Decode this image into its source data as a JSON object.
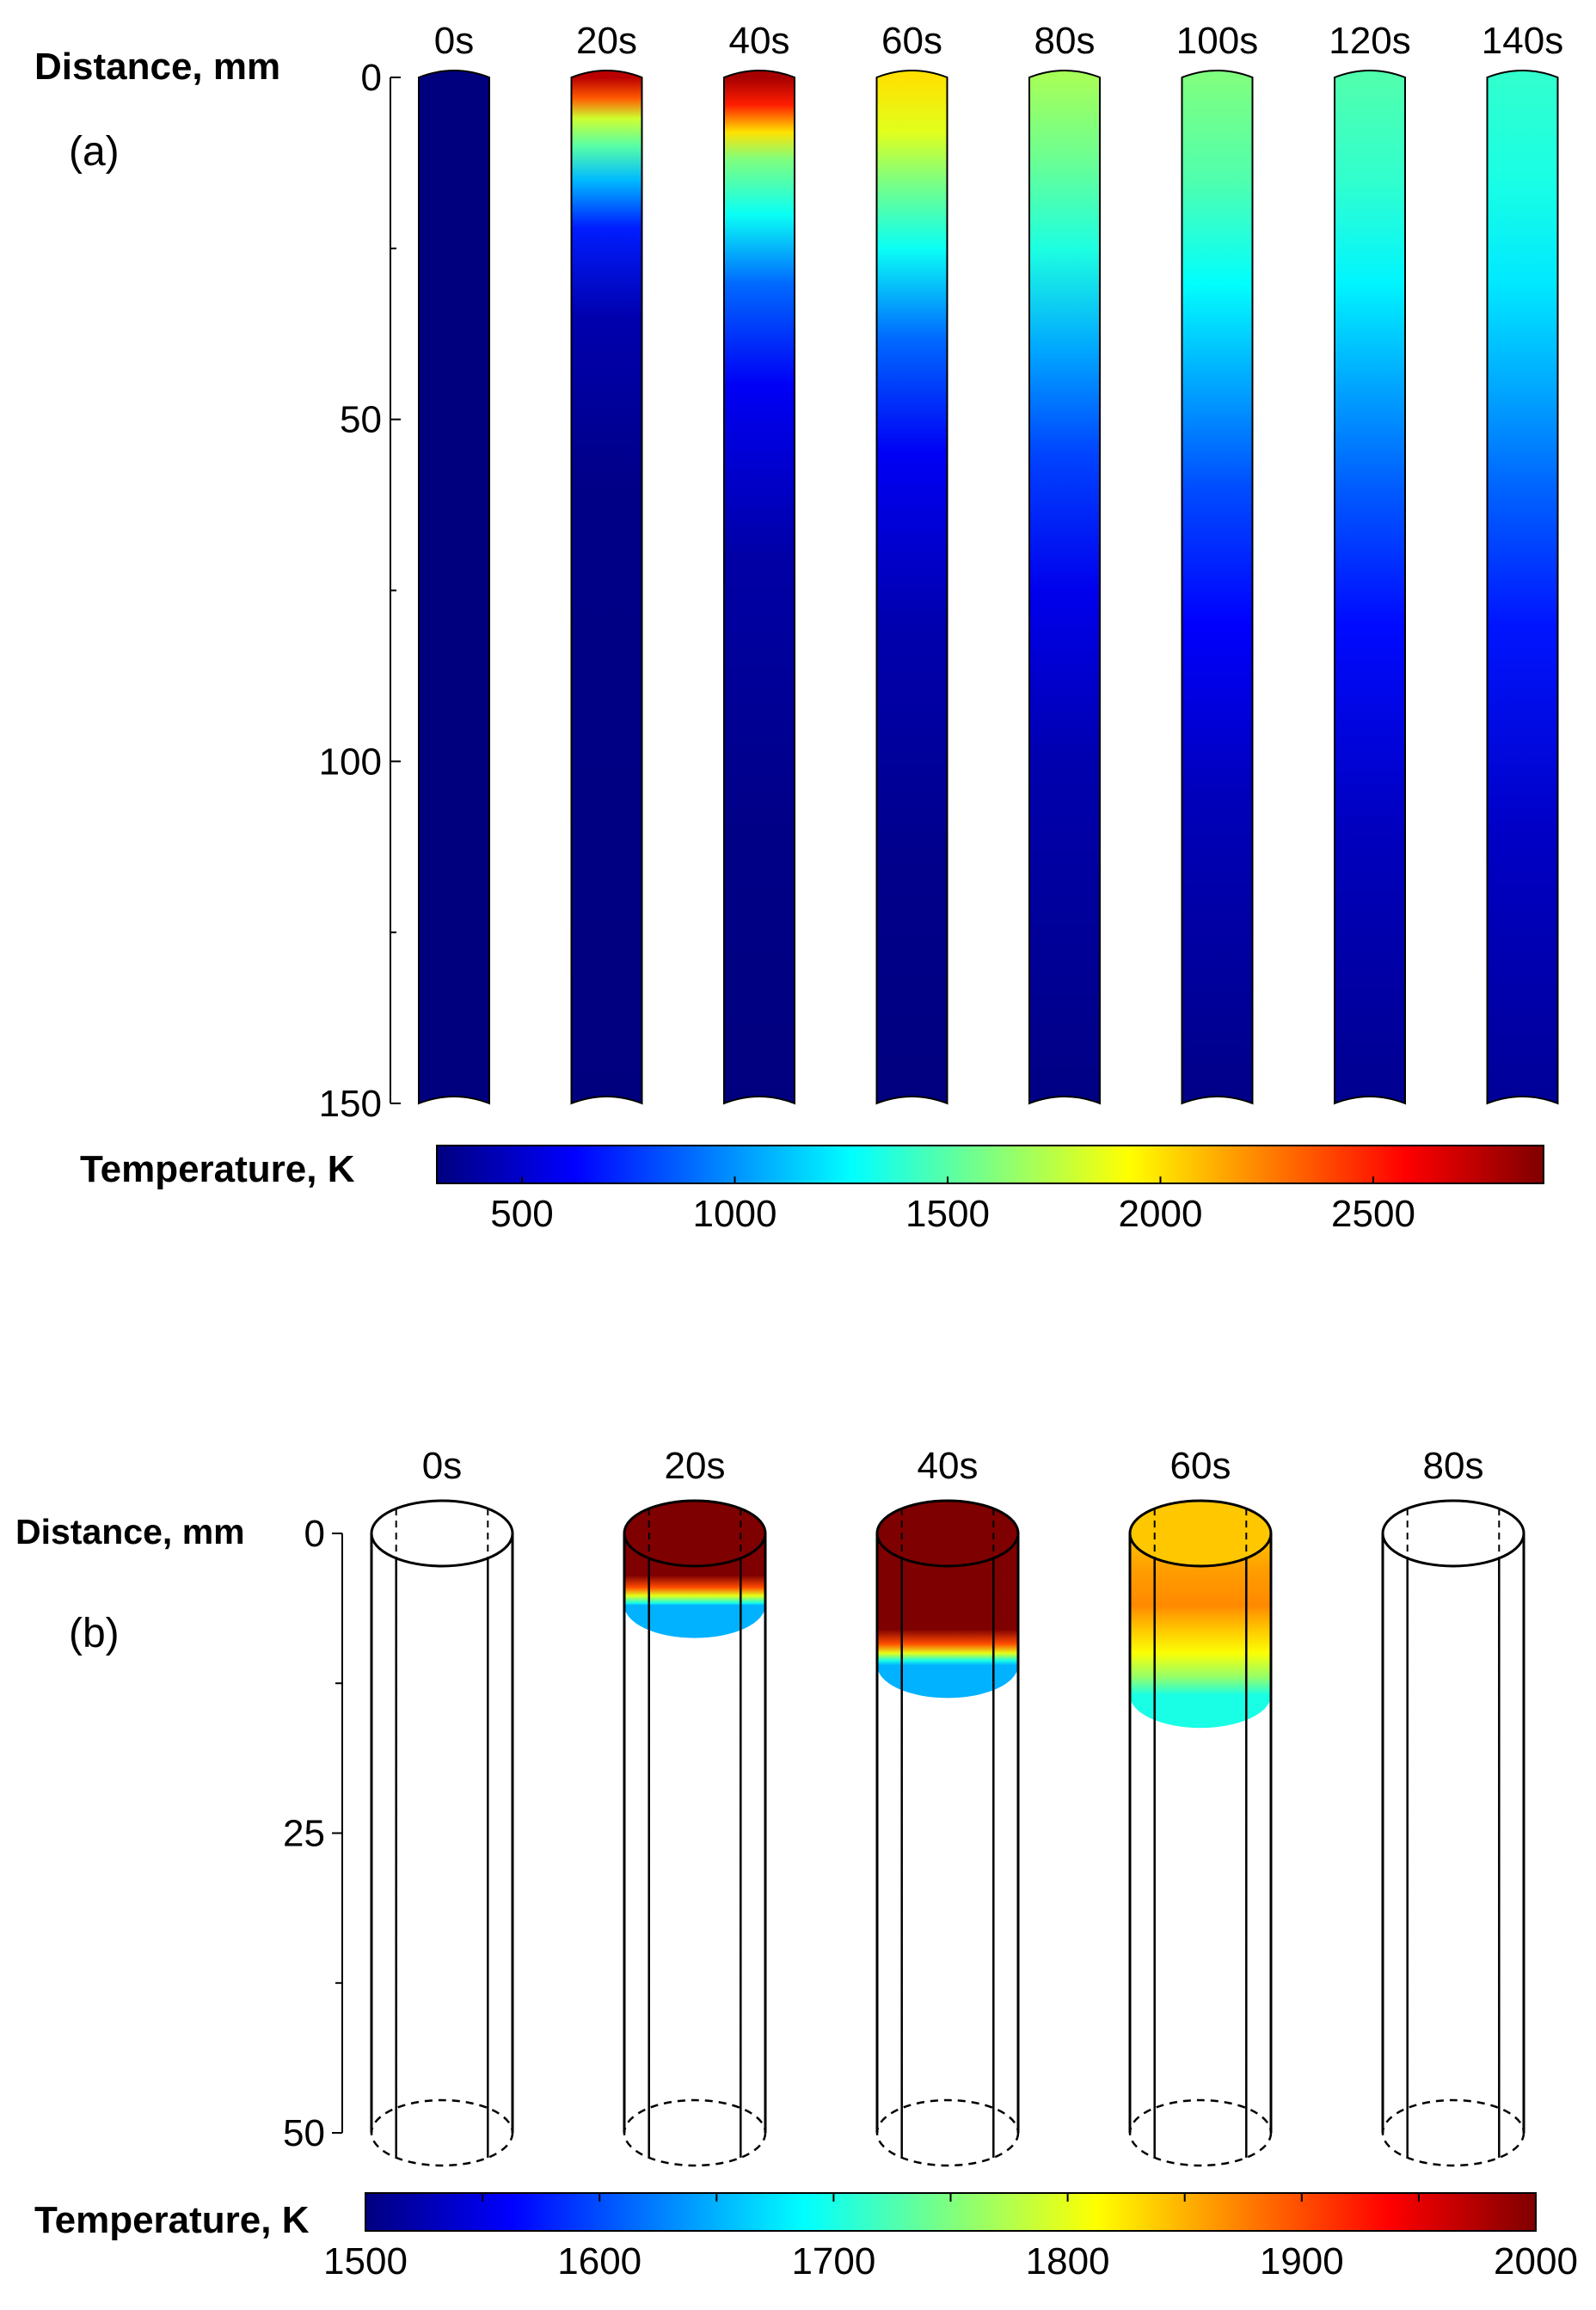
{
  "colors": {
    "jet": [
      "#00007f",
      "#0000ff",
      "#007fff",
      "#00ffff",
      "#7fff7f",
      "#ffff00",
      "#ff7f00",
      "#ff0000",
      "#7f0000"
    ],
    "outline": "#000000"
  },
  "chart_data": [
    {
      "panel_label": "(a)",
      "type": "heatmap",
      "ylabel": "Distance, mm",
      "ylim": [
        0,
        150
      ],
      "yticks": [
        "0",
        "50",
        "100",
        "150"
      ],
      "ytick_values": [
        0,
        50,
        100,
        150
      ],
      "colorbar": {
        "label": "Temperature, K",
        "range": [
          300,
          2900
        ],
        "ticks": [
          "500",
          "1000",
          "1500",
          "2000",
          "2500"
        ],
        "tick_values": [
          500,
          1000,
          1500,
          2000,
          2500
        ]
      },
      "series": [
        {
          "name": "0s",
          "profile": [
            [
              0,
              300
            ],
            [
              150,
              300
            ]
          ]
        },
        {
          "name": "20s",
          "profile": [
            [
              0,
              2750
            ],
            [
              3,
              2350
            ],
            [
              6,
              1800
            ],
            [
              10,
              1500
            ],
            [
              15,
              1100
            ],
            [
              22,
              700
            ],
            [
              35,
              420
            ],
            [
              60,
              320
            ],
            [
              150,
              300
            ]
          ]
        },
        {
          "name": "40s",
          "profile": [
            [
              0,
              2800
            ],
            [
              4,
              2500
            ],
            [
              8,
              2000
            ],
            [
              12,
              1600
            ],
            [
              20,
              1300
            ],
            [
              30,
              900
            ],
            [
              45,
              600
            ],
            [
              70,
              400
            ],
            [
              110,
              320
            ],
            [
              150,
              300
            ]
          ]
        },
        {
          "name": "60s",
          "profile": [
            [
              0,
              2000
            ],
            [
              8,
              1850
            ],
            [
              15,
              1600
            ],
            [
              25,
              1300
            ],
            [
              38,
              900
            ],
            [
              55,
              600
            ],
            [
              80,
              420
            ],
            [
              115,
              330
            ],
            [
              150,
              300
            ]
          ]
        },
        {
          "name": "80s",
          "profile": [
            [
              0,
              1700
            ],
            [
              12,
              1550
            ],
            [
              25,
              1350
            ],
            [
              40,
              1050
            ],
            [
              55,
              800
            ],
            [
              75,
              580
            ],
            [
              100,
              420
            ],
            [
              150,
              310
            ]
          ]
        },
        {
          "name": "100s",
          "profile": [
            [
              0,
              1600
            ],
            [
              15,
              1480
            ],
            [
              30,
              1280
            ],
            [
              45,
              1050
            ],
            [
              60,
              820
            ],
            [
              80,
              620
            ],
            [
              105,
              450
            ],
            [
              150,
              320
            ]
          ]
        },
        {
          "name": "120s",
          "profile": [
            [
              0,
              1480
            ],
            [
              15,
              1400
            ],
            [
              30,
              1250
            ],
            [
              45,
              1050
            ],
            [
              60,
              860
            ],
            [
              80,
              650
            ],
            [
              110,
              460
            ],
            [
              150,
              340
            ]
          ]
        },
        {
          "name": "140s",
          "profile": [
            [
              0,
              1400
            ],
            [
              15,
              1340
            ],
            [
              30,
              1220
            ],
            [
              45,
              1060
            ],
            [
              60,
              880
            ],
            [
              80,
              680
            ],
            [
              110,
              480
            ],
            [
              150,
              360
            ]
          ]
        }
      ]
    },
    {
      "panel_label": "(b)",
      "type": "heatmap",
      "ylabel": "Distance, mm",
      "ylim": [
        0,
        50
      ],
      "yticks": [
        "0",
        "25",
        "50"
      ],
      "ytick_values": [
        0,
        25,
        50
      ],
      "colorbar": {
        "label": "Temperature, K",
        "range": [
          1500,
          2000
        ],
        "ticks": [
          "1500",
          "1600",
          "1700",
          "1800",
          "1900",
          "2000"
        ],
        "tick_values": [
          1500,
          1600,
          1700,
          1800,
          1900,
          2000
        ]
      },
      "series": [
        {
          "name": "0s",
          "depth": 0,
          "profile": []
        },
        {
          "name": "20s",
          "depth": 6,
          "profile": [
            [
              0,
              2000
            ],
            [
              3.5,
              2000
            ],
            [
              4.5,
              1900
            ],
            [
              5.2,
              1800
            ],
            [
              5.8,
              1700
            ],
            [
              6,
              1650
            ]
          ]
        },
        {
          "name": "40s",
          "depth": 11,
          "profile": [
            [
              0,
              2000
            ],
            [
              8,
              2000
            ],
            [
              9.2,
              1900
            ],
            [
              10,
              1800
            ],
            [
              10.6,
              1700
            ],
            [
              11,
              1650
            ]
          ]
        },
        {
          "name": "60s",
          "depth": 13.5,
          "profile": [
            [
              0,
              1840
            ],
            [
              3,
              1860
            ],
            [
              6,
              1870
            ],
            [
              8,
              1840
            ],
            [
              10,
              1810
            ],
            [
              12,
              1760
            ],
            [
              13.5,
              1700
            ]
          ]
        },
        {
          "name": "80s",
          "depth": 0,
          "profile": []
        }
      ]
    }
  ]
}
